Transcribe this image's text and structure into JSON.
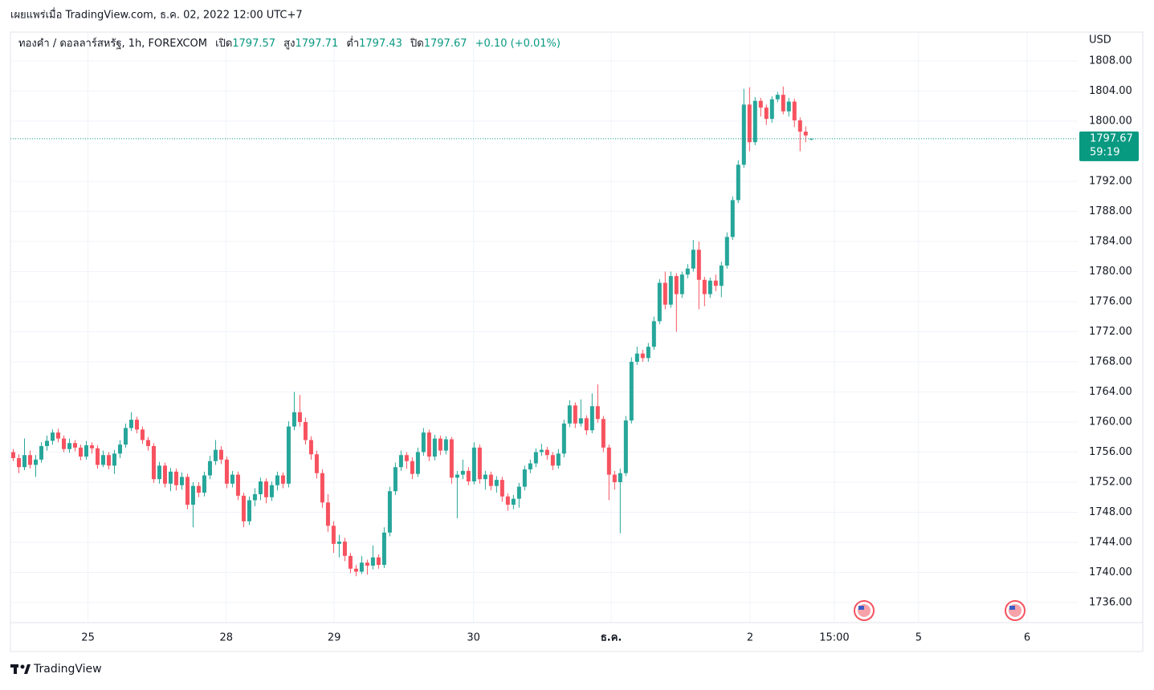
{
  "published": "เผยแพร่เมื่อ TradingView.com, ธ.ค. 02, 2022 12:00 UTC+7",
  "brand": "TradingView",
  "chart_data": {
    "type": "candlestick",
    "symbol": "ทองคำ / ดอลลาร์สหรัฐ, 1h, FOREXCOM",
    "ohlc_labels": [
      "เปิด",
      "สูง",
      "ต่ำ",
      "ปิด"
    ],
    "change_label": "+0.10 (+0.01%)",
    "currency": "USD",
    "countdown": "59:19",
    "up_color": "#26a69a",
    "down_color": "#f7525f",
    "grid": true,
    "xlim": [
      -0.5,
      189.4
    ],
    "ylim": [
      1733.33,
      1811.73
    ],
    "yticks": [
      {
        "value": 1736,
        "label": "1736.00"
      },
      {
        "value": 1740,
        "label": "1740.00"
      },
      {
        "value": 1744,
        "label": "1744.00"
      },
      {
        "value": 1748,
        "label": "1748.00"
      },
      {
        "value": 1752,
        "label": "1752.00"
      },
      {
        "value": 1756,
        "label": "1756.00"
      },
      {
        "value": 1760,
        "label": "1760.00"
      },
      {
        "value": 1764,
        "label": "1764.00"
      },
      {
        "value": 1768,
        "label": "1768.00"
      },
      {
        "value": 1772,
        "label": "1772.00"
      },
      {
        "value": 1776,
        "label": "1776.00"
      },
      {
        "value": 1780,
        "label": "1780.00"
      },
      {
        "value": 1784,
        "label": "1784.00"
      },
      {
        "value": 1788,
        "label": "1788.00"
      },
      {
        "value": 1792,
        "label": "1792.00"
      },
      {
        "value": 1800,
        "label": "1800.00"
      },
      {
        "value": 1804,
        "label": "1804.00"
      },
      {
        "value": 1808,
        "label": "1808.00"
      }
    ],
    "xticks": [
      {
        "value": 13.3,
        "label": "25"
      },
      {
        "value": 37.9,
        "label": "28"
      },
      {
        "value": 57.1,
        "label": "29"
      },
      {
        "value": 81.9,
        "label": "30"
      },
      {
        "value": 106.4,
        "label": "ธ.ค."
      },
      {
        "value": 131.1,
        "label": "2"
      },
      {
        "value": 146.1,
        "label": "15:00"
      },
      {
        "value": 161.1,
        "label": "5"
      },
      {
        "value": 180.4,
        "label": "6"
      }
    ],
    "ohlc": [
      [
        1756.0,
        1756.4,
        1754.8,
        1755.2
      ],
      [
        1755.2,
        1755.7,
        1753.2,
        1754.0
      ],
      [
        1754.0,
        1757.8,
        1753.6,
        1755.6
      ],
      [
        1755.6,
        1756.2,
        1753.8,
        1754.3
      ],
      [
        1754.3,
        1755.6,
        1752.7,
        1755.0
      ],
      [
        1755.0,
        1757.3,
        1754.6,
        1756.8
      ],
      [
        1756.8,
        1758.2,
        1756.2,
        1757.5
      ],
      [
        1757.5,
        1759.0,
        1757.0,
        1758.6
      ],
      [
        1758.6,
        1759.1,
        1757.3,
        1757.8
      ],
      [
        1757.8,
        1758.2,
        1756.0,
        1756.4
      ],
      [
        1756.4,
        1757.8,
        1755.9,
        1757.2
      ],
      [
        1757.2,
        1757.6,
        1756.1,
        1756.6
      ],
      [
        1756.6,
        1757.0,
        1754.9,
        1755.4
      ],
      [
        1755.4,
        1757.5,
        1755.0,
        1756.9
      ],
      [
        1756.9,
        1757.3,
        1755.8,
        1756.5
      ],
      [
        1756.5,
        1756.9,
        1753.8,
        1754.3
      ],
      [
        1754.3,
        1756.2,
        1754.0,
        1755.6
      ],
      [
        1755.6,
        1756.0,
        1753.7,
        1754.2
      ],
      [
        1754.2,
        1756.3,
        1753.1,
        1755.8
      ],
      [
        1755.8,
        1757.6,
        1755.2,
        1757.0
      ],
      [
        1757.0,
        1759.8,
        1756.6,
        1759.2
      ],
      [
        1759.2,
        1761.3,
        1758.8,
        1760.3
      ],
      [
        1760.3,
        1760.7,
        1758.5,
        1759.0
      ],
      [
        1759.0,
        1759.4,
        1757.1,
        1757.6
      ],
      [
        1757.6,
        1758.0,
        1756.2,
        1756.8
      ],
      [
        1756.8,
        1757.2,
        1751.9,
        1752.4
      ],
      [
        1752.4,
        1754.7,
        1751.8,
        1754.2
      ],
      [
        1754.2,
        1754.6,
        1751.3,
        1751.8
      ],
      [
        1751.8,
        1753.9,
        1750.8,
        1753.4
      ],
      [
        1753.4,
        1753.8,
        1750.9,
        1751.6
      ],
      [
        1751.6,
        1753.3,
        1751.0,
        1752.7
      ],
      [
        1752.7,
        1753.1,
        1748.4,
        1749.0
      ],
      [
        1749.0,
        1752.0,
        1746.0,
        1751.5
      ],
      [
        1751.5,
        1752.0,
        1750.0,
        1750.6
      ],
      [
        1750.6,
        1753.4,
        1750.1,
        1752.9
      ],
      [
        1752.9,
        1755.5,
        1752.4,
        1754.8
      ],
      [
        1754.8,
        1757.6,
        1754.3,
        1756.3
      ],
      [
        1756.3,
        1756.8,
        1754.4,
        1755.0
      ],
      [
        1755.0,
        1755.4,
        1751.2,
        1751.8
      ],
      [
        1751.8,
        1753.5,
        1751.3,
        1753.0
      ],
      [
        1753.0,
        1753.4,
        1749.6,
        1750.2
      ],
      [
        1750.2,
        1750.6,
        1746.0,
        1746.8
      ],
      [
        1746.8,
        1750.1,
        1746.3,
        1749.6
      ],
      [
        1749.6,
        1751.2,
        1748.8,
        1750.4
      ],
      [
        1750.4,
        1752.6,
        1749.6,
        1752.1
      ],
      [
        1752.1,
        1752.5,
        1749.2,
        1750.0
      ],
      [
        1750.0,
        1752.1,
        1749.5,
        1751.6
      ],
      [
        1751.6,
        1753.4,
        1750.9,
        1752.9
      ],
      [
        1752.9,
        1753.3,
        1751.2,
        1751.8
      ],
      [
        1751.8,
        1760.1,
        1751.3,
        1759.4
      ],
      [
        1759.4,
        1764.0,
        1758.9,
        1761.3
      ],
      [
        1761.3,
        1763.6,
        1759.4,
        1760.0
      ],
      [
        1760.0,
        1760.6,
        1757.0,
        1757.6
      ],
      [
        1757.6,
        1758.1,
        1755.0,
        1755.7
      ],
      [
        1755.7,
        1756.2,
        1752.5,
        1753.2
      ],
      [
        1753.2,
        1753.7,
        1748.6,
        1749.3
      ],
      [
        1749.3,
        1750.4,
        1745.4,
        1746.2
      ],
      [
        1746.2,
        1746.8,
        1742.6,
        1743.8
      ],
      [
        1743.8,
        1745.0,
        1742.0,
        1744.1
      ],
      [
        1744.1,
        1744.6,
        1741.5,
        1742.2
      ],
      [
        1742.2,
        1742.6,
        1739.9,
        1740.5
      ],
      [
        1740.5,
        1741.0,
        1739.5,
        1740.1
      ],
      [
        1740.1,
        1742.2,
        1739.8,
        1741.3
      ],
      [
        1741.3,
        1741.7,
        1739.7,
        1740.9
      ],
      [
        1740.9,
        1743.6,
        1740.4,
        1742.0
      ],
      [
        1742.0,
        1742.4,
        1740.5,
        1741.0
      ],
      [
        1741.0,
        1746.0,
        1740.6,
        1745.3
      ],
      [
        1745.3,
        1751.4,
        1744.8,
        1750.8
      ],
      [
        1750.8,
        1754.6,
        1750.3,
        1754.0
      ],
      [
        1754.0,
        1756.2,
        1753.5,
        1755.6
      ],
      [
        1755.6,
        1756.0,
        1753.8,
        1754.8
      ],
      [
        1754.8,
        1755.3,
        1752.4,
        1753.1
      ],
      [
        1753.1,
        1756.6,
        1752.7,
        1756.0
      ],
      [
        1756.0,
        1759.2,
        1755.5,
        1758.6
      ],
      [
        1758.6,
        1759.0,
        1754.8,
        1755.4
      ],
      [
        1755.4,
        1758.3,
        1754.9,
        1757.8
      ],
      [
        1757.8,
        1758.2,
        1755.6,
        1756.2
      ],
      [
        1756.2,
        1758.1,
        1755.7,
        1757.7
      ],
      [
        1757.7,
        1758.0,
        1751.8,
        1752.6
      ],
      [
        1752.6,
        1753.5,
        1747.2,
        1753.0
      ],
      [
        1753.0,
        1755.0,
        1752.4,
        1753.5
      ],
      [
        1753.5,
        1754.0,
        1751.6,
        1752.1
      ],
      [
        1752.1,
        1757.3,
        1751.7,
        1756.6
      ],
      [
        1756.6,
        1757.0,
        1751.8,
        1752.4
      ],
      [
        1752.4,
        1753.5,
        1751.0,
        1753.0
      ],
      [
        1753.0,
        1753.4,
        1750.9,
        1751.5
      ],
      [
        1751.5,
        1752.8,
        1750.6,
        1752.3
      ],
      [
        1752.3,
        1752.7,
        1749.4,
        1750.1
      ],
      [
        1750.1,
        1750.5,
        1748.2,
        1749.0
      ],
      [
        1749.0,
        1750.3,
        1748.4,
        1749.8
      ],
      [
        1749.8,
        1751.9,
        1748.6,
        1751.4
      ],
      [
        1751.4,
        1754.2,
        1750.9,
        1753.7
      ],
      [
        1753.7,
        1755.0,
        1753.2,
        1754.5
      ],
      [
        1754.5,
        1756.5,
        1754.0,
        1756.0
      ],
      [
        1756.0,
        1757.1,
        1755.5,
        1756.3
      ],
      [
        1756.3,
        1756.7,
        1755.0,
        1755.6
      ],
      [
        1755.6,
        1756.0,
        1753.6,
        1754.2
      ],
      [
        1754.2,
        1756.4,
        1753.8,
        1755.8
      ],
      [
        1755.8,
        1760.3,
        1755.3,
        1759.8
      ],
      [
        1759.8,
        1762.9,
        1759.3,
        1762.2
      ],
      [
        1762.2,
        1762.6,
        1759.2,
        1759.8
      ],
      [
        1759.8,
        1763.0,
        1759.4,
        1760.5
      ],
      [
        1760.5,
        1760.9,
        1758.3,
        1758.9
      ],
      [
        1758.9,
        1763.8,
        1758.5,
        1762.1
      ],
      [
        1762.1,
        1765.0,
        1759.9,
        1760.4
      ],
      [
        1760.4,
        1760.8,
        1756.0,
        1756.6
      ],
      [
        1756.6,
        1757.0,
        1749.6,
        1753.0
      ],
      [
        1753.0,
        1753.5,
        1751.0,
        1752.0
      ],
      [
        1752.0,
        1753.8,
        1745.2,
        1753.2
      ],
      [
        1753.2,
        1760.8,
        1752.8,
        1760.2
      ],
      [
        1760.2,
        1768.6,
        1759.8,
        1768.0
      ],
      [
        1768.0,
        1770.0,
        1767.6,
        1769.1
      ],
      [
        1769.1,
        1769.6,
        1768.0,
        1768.5
      ],
      [
        1768.5,
        1770.5,
        1768.0,
        1770.0
      ],
      [
        1770.0,
        1774.0,
        1769.6,
        1773.4
      ],
      [
        1773.4,
        1779.0,
        1773.0,
        1778.5
      ],
      [
        1778.5,
        1780.0,
        1775.0,
        1775.6
      ],
      [
        1775.6,
        1780.0,
        1775.2,
        1779.4
      ],
      [
        1779.4,
        1779.8,
        1772.0,
        1777.0
      ],
      [
        1777.0,
        1780.0,
        1776.5,
        1779.6
      ],
      [
        1779.6,
        1781.0,
        1779.1,
        1780.4
      ],
      [
        1780.4,
        1784.2,
        1780.0,
        1782.9
      ],
      [
        1782.9,
        1784.0,
        1775.0,
        1778.9
      ],
      [
        1778.9,
        1779.3,
        1775.4,
        1777.0
      ],
      [
        1777.0,
        1779.2,
        1776.5,
        1778.8
      ],
      [
        1778.8,
        1779.6,
        1777.4,
        1778.1
      ],
      [
        1778.1,
        1781.3,
        1776.6,
        1780.8
      ],
      [
        1780.8,
        1785.2,
        1780.4,
        1784.6
      ],
      [
        1784.6,
        1790.0,
        1784.2,
        1789.5
      ],
      [
        1789.5,
        1794.8,
        1789.1,
        1794.2
      ],
      [
        1794.2,
        1804.3,
        1793.8,
        1802.2
      ],
      [
        1802.2,
        1804.5,
        1796.0,
        1797.2
      ],
      [
        1797.2,
        1803.2,
        1796.8,
        1802.7
      ],
      [
        1802.7,
        1803.1,
        1800.6,
        1801.8
      ],
      [
        1801.8,
        1802.2,
        1799.5,
        1800.3
      ],
      [
        1800.3,
        1803.3,
        1799.8,
        1802.9
      ],
      [
        1802.9,
        1803.9,
        1802.5,
        1803.5
      ],
      [
        1803.5,
        1804.6,
        1800.9,
        1801.3
      ],
      [
        1801.3,
        1803.1,
        1800.6,
        1802.6
      ],
      [
        1802.6,
        1803.0,
        1799.2,
        1800.1
      ],
      [
        1800.1,
        1800.5,
        1796.0,
        1798.6
      ],
      [
        1798.6,
        1799.3,
        1797.2,
        1798.1
      ],
      [
        1797.57,
        1797.71,
        1797.43,
        1797.67
      ]
    ]
  }
}
